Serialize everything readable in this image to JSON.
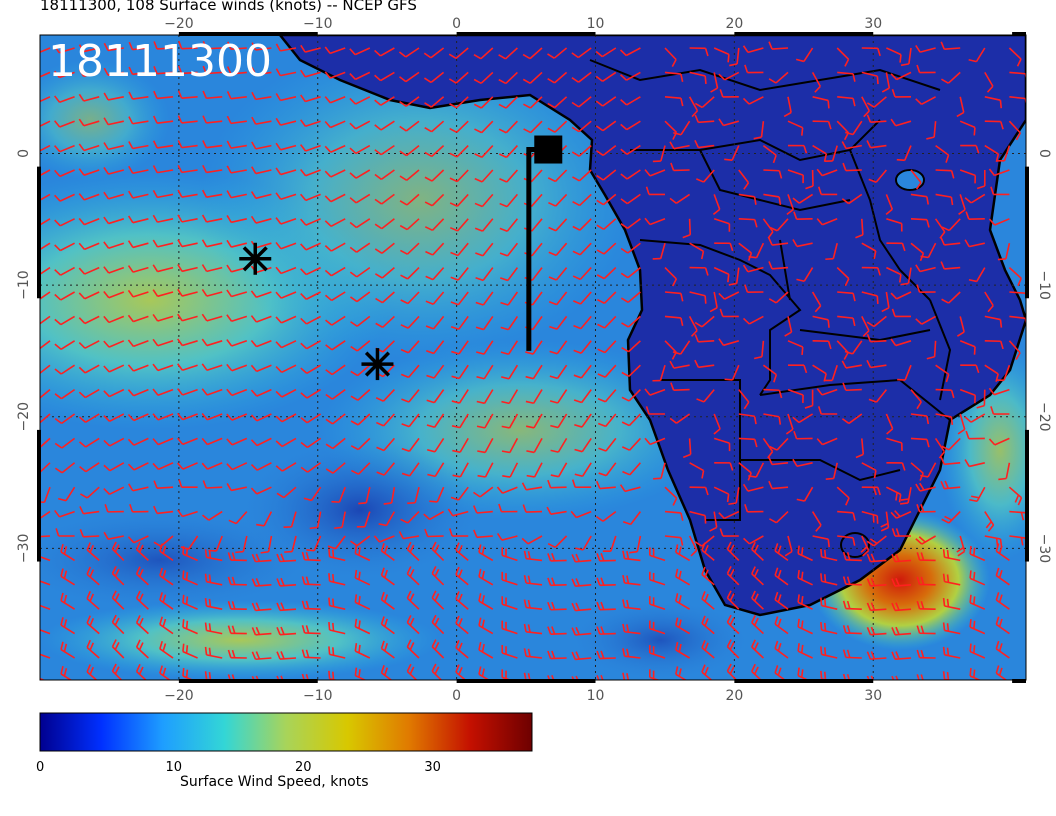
{
  "header": {
    "title": "18111300, 108 Surface winds (knots) -- NCEP GFS",
    "stamp": "18111300"
  },
  "map": {
    "projection": "lat-lon",
    "lon_range": [
      -30,
      41
    ],
    "lat_range": [
      -40,
      9
    ],
    "lon_ticks": [
      -20,
      -10,
      0,
      10,
      20,
      30
    ],
    "lat_ticks": [
      0,
      -10,
      -20,
      -30
    ],
    "lon_tick_labels": [
      "−20",
      "−10",
      "0",
      "10",
      "20",
      "30"
    ],
    "lat_tick_labels": [
      "0",
      "−10",
      "−20",
      "−30"
    ],
    "grid": "dotted",
    "markers": [
      {
        "name": "asterisk-marker-1",
        "lon": -14.5,
        "lat": -8.0
      },
      {
        "name": "asterisk-marker-2",
        "lon": -5.7,
        "lat": -16.0
      },
      {
        "name": "square-marker",
        "lon": 6.6,
        "lat": 0.3
      }
    ],
    "track_line": [
      [
        5.2,
        -15.0
      ],
      [
        5.2,
        0.3
      ],
      [
        6.6,
        0.3
      ]
    ],
    "colors": {
      "barbs": "#ff2020",
      "coast": "#000000",
      "ocean_base": "#2c7fd6",
      "land_base": "#1a2fa6"
    }
  },
  "colorbar": {
    "label": "Surface Wind Speed, knots",
    "min": 0,
    "max": 38,
    "ticks": [
      0,
      10,
      20,
      30
    ],
    "tick_labels": [
      "0",
      "10",
      "20",
      "30"
    ],
    "stops": [
      "#00008f",
      "#0030ff",
      "#1e9eff",
      "#33d6d6",
      "#a8d45a",
      "#d8c800",
      "#e07a00",
      "#c41000",
      "#6e0000"
    ]
  }
}
